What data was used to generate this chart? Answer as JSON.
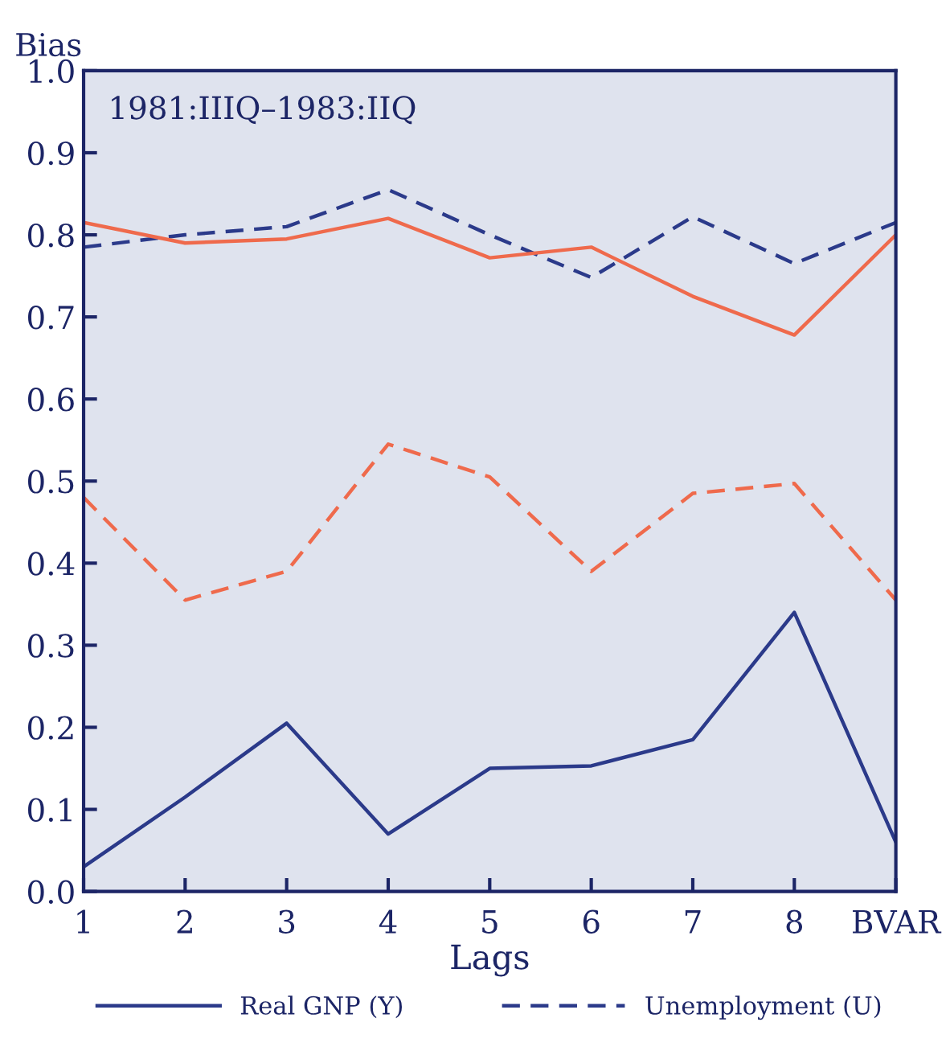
{
  "chart_data": {
    "type": "line",
    "ylabel": "Bias",
    "xlabel": "Lags",
    "annotations": [
      "1981:IIIQ–1983:IIQ"
    ],
    "categories": [
      "1",
      "2",
      "3",
      "4",
      "5",
      "6",
      "7",
      "8",
      "BVAR"
    ],
    "series": [
      {
        "name": "Real GNP (Y)",
        "color": "#2b3a8a",
        "line_style": "solid",
        "values": [
          0.03,
          0.115,
          0.205,
          0.07,
          0.15,
          0.153,
          0.185,
          0.34,
          0.06
        ]
      },
      {
        "name": "Unemployment (U)",
        "color": "#2b3a8a",
        "line_style": "dashed",
        "values": [
          0.785,
          0.8,
          0.81,
          0.855,
          0.8,
          0.748,
          0.822,
          0.765,
          0.815
        ]
      },
      {
        "color": "#ef6a4c",
        "line_style": "solid",
        "values": [
          0.815,
          0.79,
          0.795,
          0.82,
          0.772,
          0.785,
          0.725,
          0.678,
          0.8
        ]
      },
      {
        "color": "#ef6a4c",
        "line_style": "dashed",
        "values": [
          0.48,
          0.355,
          0.39,
          0.545,
          0.505,
          0.39,
          0.485,
          0.497,
          0.355
        ]
      }
    ],
    "ylim": [
      0,
      1
    ],
    "yticks": [
      {
        "value": 0,
        "label": "0.0"
      },
      0.1,
      0.2,
      0.3,
      0.4,
      0.5,
      0.6,
      0.7,
      0.8,
      0.9,
      {
        "value": 1,
        "label": "1.0"
      }
    ],
    "grid": false,
    "legend": "bottom",
    "marker": "none"
  }
}
